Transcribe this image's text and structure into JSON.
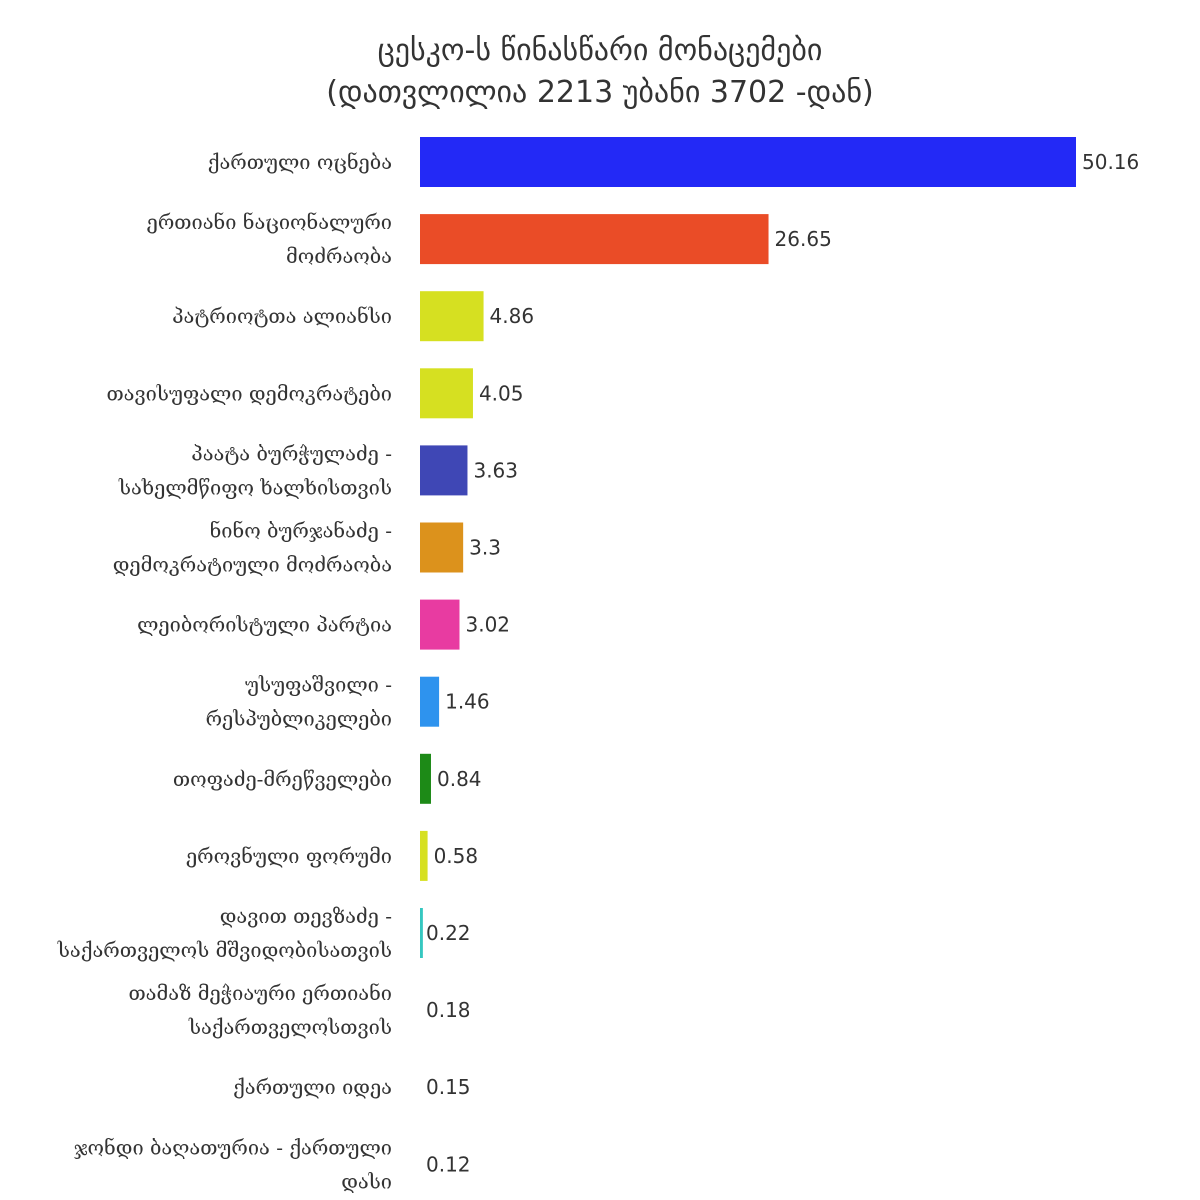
{
  "chart_data": {
    "type": "bar",
    "orientation": "horizontal",
    "title_lines": [
      "ცესკო-ს წინასწარი მონაცემები",
      "(დათვლილია 2213 უბანი 3702 -დან)"
    ],
    "xlabel": "",
    "ylabel": "",
    "grid": false,
    "legend": "none",
    "xlim": [
      0,
      50.16
    ],
    "bars": [
      {
        "label_lines": [
          "ქართული ოცნება"
        ],
        "value": 50.16,
        "value_label": "50.16",
        "color": "#2329F6"
      },
      {
        "label_lines": [
          "ერთიანი ნაციონალური",
          "მოძრაობა"
        ],
        "value": 26.65,
        "value_label": "26.65",
        "color": "#EA4C27"
      },
      {
        "label_lines": [
          "პატრიოტთა ალიანსი"
        ],
        "value": 4.86,
        "value_label": "4.86",
        "color": "#D6E021"
      },
      {
        "label_lines": [
          "თავისუფალი დემოკრატები"
        ],
        "value": 4.05,
        "value_label": "4.05",
        "color": "#D6E021"
      },
      {
        "label_lines": [
          "პაატა ბურჭულაძე -",
          "სახელმწიფო ხალხისთვის"
        ],
        "value": 3.63,
        "value_label": "3.63",
        "color": "#3F47B5"
      },
      {
        "label_lines": [
          "ნინო ბურჯანაძე -",
          "დემოკრატიული მოძრაობა"
        ],
        "value": 3.3,
        "value_label": "3.3",
        "color": "#DC921C"
      },
      {
        "label_lines": [
          "ლეიბორისტული პარტია"
        ],
        "value": 3.02,
        "value_label": "3.02",
        "color": "#E83BA1"
      },
      {
        "label_lines": [
          "უსუფაშვილი -",
          "რესპუბლიკელები"
        ],
        "value": 1.46,
        "value_label": "1.46",
        "color": "#2E93EE"
      },
      {
        "label_lines": [
          "თოფაძე-მრეწველები"
        ],
        "value": 0.84,
        "value_label": "0.84",
        "color": "#1D8A17"
      },
      {
        "label_lines": [
          "ეროვნული ფორუმი"
        ],
        "value": 0.58,
        "value_label": "0.58",
        "color": "#D6E021"
      },
      {
        "label_lines": [
          "დავით თევზაძე -",
          "საქართველოს მშვიდობისათვის"
        ],
        "value": 0.22,
        "value_label": "0.22",
        "color": "#35C7C0"
      },
      {
        "label_lines": [
          "თამაზ მეჭიაური ერთიანი",
          "საქართველოსთვის"
        ],
        "value": 0.18,
        "value_label": "0.18",
        "color": "#FFFFFF"
      },
      {
        "label_lines": [
          "ქართული იდეა"
        ],
        "value": 0.15,
        "value_label": "0.15",
        "color": "#FFFFFF"
      },
      {
        "label_lines": [
          "ჯონდი ბაღათურია - ქართული",
          "დასი"
        ],
        "value": 0.12,
        "value_label": "0.12",
        "color": "#FFFFFF"
      }
    ]
  }
}
